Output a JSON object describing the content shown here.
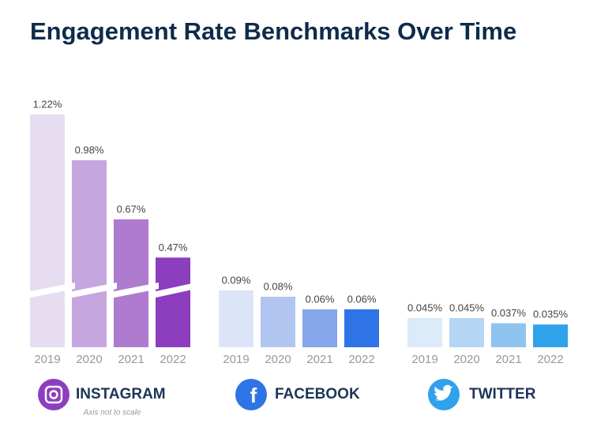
{
  "chart_data": {
    "type": "bar",
    "title": "Engagement Rate Benchmarks Over Time",
    "note": "Axis not to scale",
    "groups": [
      {
        "name": "INSTAGRAM",
        "categories": [
          "2019",
          "2020",
          "2021",
          "2022"
        ],
        "values": [
          1.22,
          0.98,
          0.67,
          0.47
        ],
        "value_labels": [
          "1.22%",
          "0.98%",
          "0.67%",
          "0.47%"
        ],
        "colors": [
          "#e7ddf1",
          "#c6a6de",
          "#ae7bcf",
          "#8c3ebf"
        ]
      },
      {
        "name": "FACEBOOK",
        "categories": [
          "2019",
          "2020",
          "2021",
          "2022"
        ],
        "values": [
          0.09,
          0.08,
          0.06,
          0.06
        ],
        "value_labels": [
          "0.09%",
          "0.08%",
          "0.06%",
          "0.06%"
        ],
        "colors": [
          "#dce5f8",
          "#b1c5f1",
          "#85a6ea",
          "#2f74e6"
        ]
      },
      {
        "name": "TWITTER",
        "categories": [
          "2019",
          "2020",
          "2021",
          "2022"
        ],
        "values": [
          0.045,
          0.045,
          0.037,
          0.035
        ],
        "value_labels": [
          "0.045%",
          "0.045%",
          "0.037%",
          "0.035%"
        ],
        "colors": [
          "#dcebfa",
          "#b4d6f4",
          "#8fc3ef",
          "#2fa2eb"
        ]
      }
    ]
  }
}
